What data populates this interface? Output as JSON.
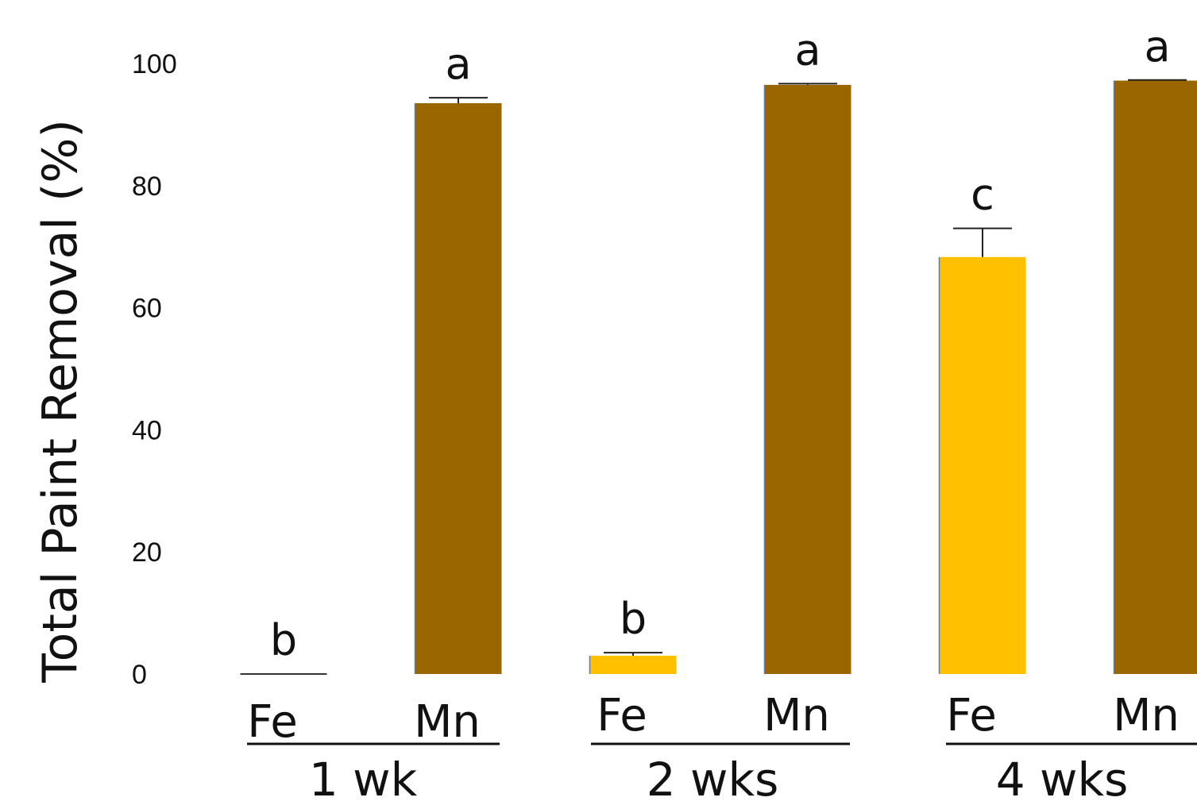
{
  "chart_data": {
    "type": "bar",
    "title": "",
    "xlabel": "",
    "ylabel": "Total Paint Removal (%)",
    "ylim": [
      0,
      100
    ],
    "yticks": [
      "0",
      "20",
      "40",
      "60",
      "80",
      "100"
    ],
    "grid": false,
    "colors": {
      "Fe": "#FFC000",
      "Mn": "#996600"
    },
    "groups": [
      {
        "label": "1 wk",
        "bars": [
          {
            "category": "Fe",
            "value": 0.0,
            "error": 0.0,
            "letter": "b"
          },
          {
            "category": "Mn",
            "value": 93.5,
            "error": 0.9,
            "letter": "a"
          }
        ]
      },
      {
        "label": "2 wks",
        "bars": [
          {
            "category": "Fe",
            "value": 3.0,
            "error": 0.5,
            "letter": "b"
          },
          {
            "category": "Mn",
            "value": 96.5,
            "error": 0.2,
            "letter": "a"
          }
        ]
      },
      {
        "label": "4 wks",
        "bars": [
          {
            "category": "Fe",
            "value": 68.3,
            "error": 4.7,
            "letter": "c"
          },
          {
            "category": "Mn",
            "value": 97.2,
            "error": 0.1,
            "letter": "a"
          }
        ]
      }
    ]
  }
}
